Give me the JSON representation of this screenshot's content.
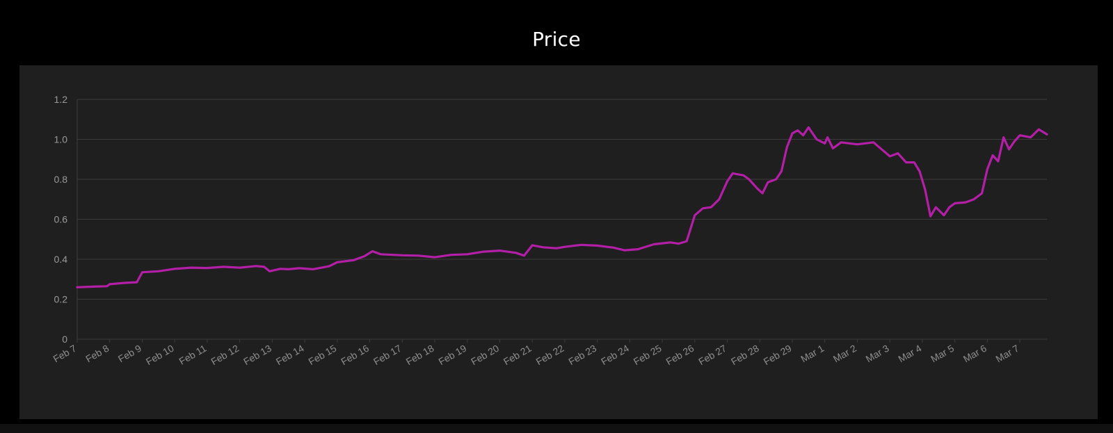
{
  "chart_data": {
    "type": "line",
    "title": "Price",
    "xlabel": "",
    "ylabel": "",
    "ylim": [
      0,
      1.2
    ],
    "yticks": [
      0,
      0.2,
      0.4,
      0.6,
      0.8,
      1.0,
      1.2
    ],
    "ytick_labels": [
      "0",
      "0.2",
      "0.4",
      "0.6",
      "0.8",
      "1.0",
      "1.2"
    ],
    "x_range": [
      "2024-02-07",
      "2024-03-07T20:00"
    ],
    "xticks": [
      "2024-02-07",
      "2024-02-08",
      "2024-02-09",
      "2024-02-10",
      "2024-02-11",
      "2024-02-12",
      "2024-02-13",
      "2024-02-14",
      "2024-02-15",
      "2024-02-16",
      "2024-02-17",
      "2024-02-18",
      "2024-02-19",
      "2024-02-20",
      "2024-02-21",
      "2024-02-22",
      "2024-02-23",
      "2024-02-24",
      "2024-02-25",
      "2024-02-26",
      "2024-02-27",
      "2024-02-28",
      "2024-02-29",
      "2024-03-01",
      "2024-03-02",
      "2024-03-03",
      "2024-03-04",
      "2024-03-05",
      "2024-03-06",
      "2024-03-07"
    ],
    "xtick_labels": [
      "Feb 7",
      "Feb 8",
      "Feb 9",
      "Feb 10",
      "Feb 11",
      "Feb 12",
      "Feb 13",
      "Feb 14",
      "Feb 15",
      "Feb 16",
      "Feb 17",
      "Feb 18",
      "Feb 19",
      "Feb 20",
      "Feb 21",
      "Feb 22",
      "Feb 23",
      "Feb 24",
      "Feb 25",
      "Feb 26",
      "Feb 27",
      "Feb 28",
      "Feb 29",
      "Mar 1",
      "Mar 2",
      "Mar 3",
      "Mar 4",
      "Mar 5",
      "Mar 6",
      "Mar 7"
    ],
    "grid": true,
    "legend": "none",
    "series": [
      {
        "color": "#b31fa6",
        "points": [
          [
            "2024-02-07T00:00",
            0.26
          ],
          [
            "2024-02-07T12:00",
            0.263
          ],
          [
            "2024-02-07T22:00",
            0.265
          ],
          [
            "2024-02-08T00:00",
            0.275
          ],
          [
            "2024-02-08T12:00",
            0.282
          ],
          [
            "2024-02-08T20:00",
            0.285
          ],
          [
            "2024-02-09T00:00",
            0.335
          ],
          [
            "2024-02-09T12:00",
            0.34
          ],
          [
            "2024-02-10T00:00",
            0.352
          ],
          [
            "2024-02-10T12:00",
            0.358
          ],
          [
            "2024-02-11T00:00",
            0.356
          ],
          [
            "2024-02-11T12:00",
            0.362
          ],
          [
            "2024-02-12T00:00",
            0.358
          ],
          [
            "2024-02-12T12:00",
            0.366
          ],
          [
            "2024-02-12T18:00",
            0.362
          ],
          [
            "2024-02-12T22:00",
            0.34
          ],
          [
            "2024-02-13T06:00",
            0.352
          ],
          [
            "2024-02-13T12:00",
            0.35
          ],
          [
            "2024-02-13T20:00",
            0.355
          ],
          [
            "2024-02-14T06:00",
            0.35
          ],
          [
            "2024-02-14T18:00",
            0.365
          ],
          [
            "2024-02-15T00:00",
            0.385
          ],
          [
            "2024-02-15T12:00",
            0.395
          ],
          [
            "2024-02-15T20:00",
            0.415
          ],
          [
            "2024-02-16T02:00",
            0.44
          ],
          [
            "2024-02-16T08:00",
            0.425
          ],
          [
            "2024-02-17T00:00",
            0.42
          ],
          [
            "2024-02-17T12:00",
            0.418
          ],
          [
            "2024-02-18T00:00",
            0.41
          ],
          [
            "2024-02-18T12:00",
            0.422
          ],
          [
            "2024-02-19T00:00",
            0.425
          ],
          [
            "2024-02-19T12:00",
            0.438
          ],
          [
            "2024-02-20T00:00",
            0.443
          ],
          [
            "2024-02-20T12:00",
            0.432
          ],
          [
            "2024-02-20T18:00",
            0.418
          ],
          [
            "2024-02-21T00:00",
            0.47
          ],
          [
            "2024-02-21T08:00",
            0.46
          ],
          [
            "2024-02-21T18:00",
            0.455
          ],
          [
            "2024-02-22T00:00",
            0.462
          ],
          [
            "2024-02-22T12:00",
            0.472
          ],
          [
            "2024-02-23T00:00",
            0.468
          ],
          [
            "2024-02-23T12:00",
            0.458
          ],
          [
            "2024-02-23T20:00",
            0.445
          ],
          [
            "2024-02-24T06:00",
            0.45
          ],
          [
            "2024-02-24T18:00",
            0.475
          ],
          [
            "2024-02-25T06:00",
            0.484
          ],
          [
            "2024-02-25T12:00",
            0.478
          ],
          [
            "2024-02-25T18:00",
            0.49
          ],
          [
            "2024-02-26T00:00",
            0.62
          ],
          [
            "2024-02-26T06:00",
            0.655
          ],
          [
            "2024-02-26T12:00",
            0.66
          ],
          [
            "2024-02-26T18:00",
            0.7
          ],
          [
            "2024-02-27T00:00",
            0.79
          ],
          [
            "2024-02-27T04:00",
            0.83
          ],
          [
            "2024-02-27T12:00",
            0.82
          ],
          [
            "2024-02-27T16:00",
            0.8
          ],
          [
            "2024-02-27T22:00",
            0.755
          ],
          [
            "2024-02-28T02:00",
            0.73
          ],
          [
            "2024-02-28T06:00",
            0.785
          ],
          [
            "2024-02-28T12:00",
            0.8
          ],
          [
            "2024-02-28T16:00",
            0.84
          ],
          [
            "2024-02-28T20:00",
            0.96
          ],
          [
            "2024-02-29T00:00",
            1.03
          ],
          [
            "2024-02-29T04:00",
            1.045
          ],
          [
            "2024-02-29T08:00",
            1.02
          ],
          [
            "2024-02-29T12:00",
            1.06
          ],
          [
            "2024-02-29T18:00",
            1.0
          ],
          [
            "2024-03-01T00:00",
            0.98
          ],
          [
            "2024-03-01T02:00",
            1.01
          ],
          [
            "2024-03-01T06:00",
            0.955
          ],
          [
            "2024-03-01T12:00",
            0.985
          ],
          [
            "2024-03-02T00:00",
            0.975
          ],
          [
            "2024-03-02T12:00",
            0.985
          ],
          [
            "2024-03-02T18:00",
            0.95
          ],
          [
            "2024-03-03T00:00",
            0.915
          ],
          [
            "2024-03-03T06:00",
            0.93
          ],
          [
            "2024-03-03T12:00",
            0.885
          ],
          [
            "2024-03-03T18:00",
            0.885
          ],
          [
            "2024-03-03T22:00",
            0.84
          ],
          [
            "2024-03-04T02:00",
            0.75
          ],
          [
            "2024-03-04T06:00",
            0.615
          ],
          [
            "2024-03-04T10:00",
            0.66
          ],
          [
            "2024-03-04T16:00",
            0.62
          ],
          [
            "2024-03-04T20:00",
            0.66
          ],
          [
            "2024-03-05T00:00",
            0.68
          ],
          [
            "2024-03-05T08:00",
            0.685
          ],
          [
            "2024-03-05T14:00",
            0.7
          ],
          [
            "2024-03-05T20:00",
            0.73
          ],
          [
            "2024-03-06T00:00",
            0.85
          ],
          [
            "2024-03-06T04:00",
            0.92
          ],
          [
            "2024-03-06T08:00",
            0.89
          ],
          [
            "2024-03-06T12:00",
            1.01
          ],
          [
            "2024-03-06T16:00",
            0.95
          ],
          [
            "2024-03-06T20:00",
            0.99
          ],
          [
            "2024-03-07T00:00",
            1.02
          ],
          [
            "2024-03-07T08:00",
            1.01
          ],
          [
            "2024-03-07T14:00",
            1.05
          ],
          [
            "2024-03-07T20:00",
            1.025
          ]
        ]
      }
    ]
  }
}
